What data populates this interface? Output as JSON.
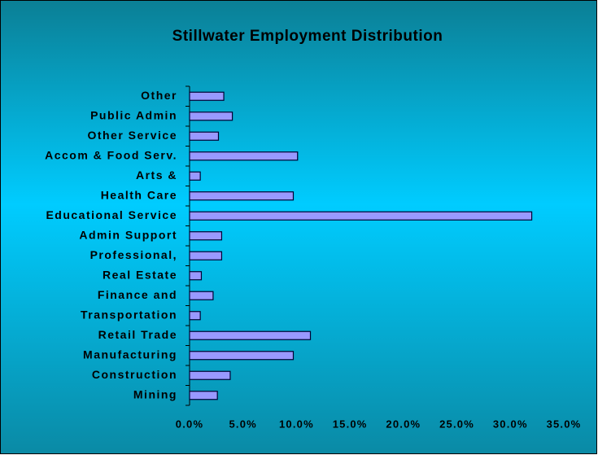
{
  "chart_data": {
    "type": "hbar",
    "title": "Stillwater Employment Distribution",
    "categories": [
      "Other",
      "Public Admin",
      "Other Service",
      "Accom & Food Serv.",
      "Arts &",
      "Health Care",
      "Educational Service",
      "Admin Support",
      "Professional,",
      "Real Estate",
      "Finance and",
      "Transportation",
      "Retail Trade",
      "Manufacturing",
      "Construction",
      "Mining"
    ],
    "values": [
      3.2,
      4.0,
      2.7,
      10.1,
      1.0,
      9.7,
      32.0,
      3.0,
      3.0,
      1.1,
      2.2,
      1.0,
      11.3,
      9.7,
      3.8,
      2.6
    ],
    "color": "#9999ff",
    "xlim": [
      0,
      35
    ],
    "xticks": [
      {
        "value": 0,
        "label": "0.0%"
      },
      {
        "value": 5,
        "label": "5.0%"
      },
      {
        "value": 10,
        "label": "10.0%"
      },
      {
        "value": 15,
        "label": "15.0%"
      },
      {
        "value": 20,
        "label": "20.0%"
      },
      {
        "value": 25,
        "label": "25.0%"
      },
      {
        "value": 30,
        "label": "30.0%"
      },
      {
        "value": 35,
        "label": "35.0%"
      }
    ]
  }
}
